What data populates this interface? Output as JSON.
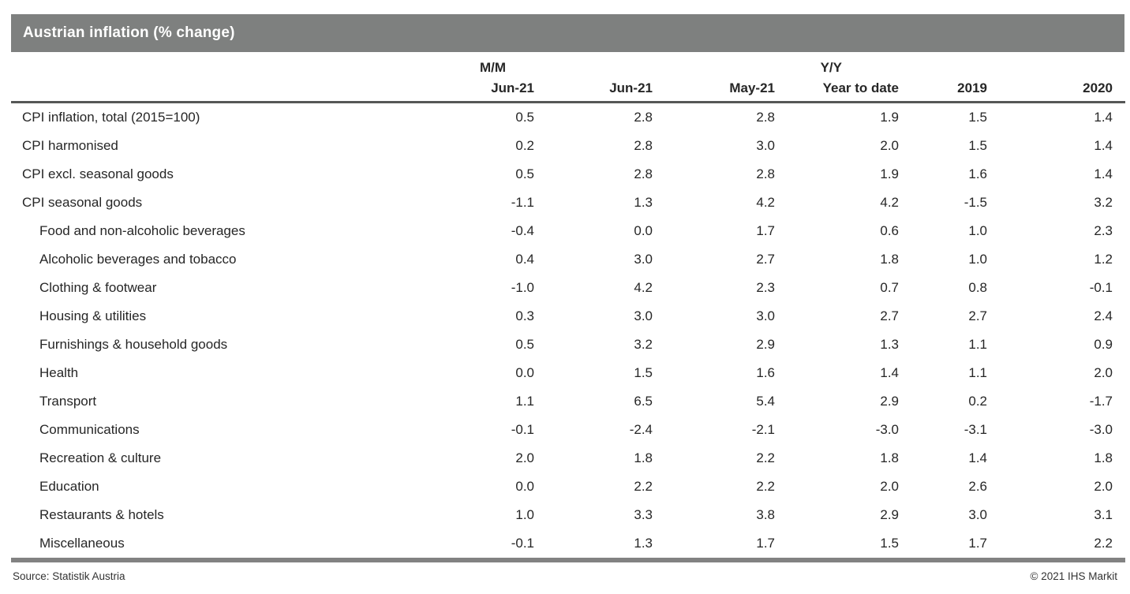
{
  "title": "Austrian inflation (% change)",
  "colors": {
    "title_bar_bg": "#7e807f",
    "title_text": "#ffffff",
    "body_text": "#262626",
    "header_rule": "#555756",
    "bottom_bar": "#828282"
  },
  "table": {
    "group_headers": {
      "mm": "M/M",
      "yy": "Y/Y"
    },
    "columns": [
      "Jun-21",
      "Jun-21",
      "May-21",
      "Year to date",
      "2019",
      "2020"
    ],
    "rows": [
      {
        "label": "CPI inflation, total (2015=100)",
        "indent": false,
        "values": [
          "0.5",
          "2.8",
          "2.8",
          "1.9",
          "1.5",
          "1.4"
        ]
      },
      {
        "label": "CPI harmonised",
        "indent": false,
        "values": [
          "0.2",
          "2.8",
          "3.0",
          "2.0",
          "1.5",
          "1.4"
        ]
      },
      {
        "label": "CPI excl. seasonal goods",
        "indent": false,
        "values": [
          "0.5",
          "2.8",
          "2.8",
          "1.9",
          "1.6",
          "1.4"
        ]
      },
      {
        "label": "CPI seasonal goods",
        "indent": false,
        "values": [
          "-1.1",
          "1.3",
          "4.2",
          "4.2",
          "-1.5",
          "3.2"
        ]
      },
      {
        "label": "Food and non-alcoholic beverages",
        "indent": true,
        "values": [
          "-0.4",
          "0.0",
          "1.7",
          "0.6",
          "1.0",
          "2.3"
        ]
      },
      {
        "label": "Alcoholic beverages and tobacco",
        "indent": true,
        "values": [
          "0.4",
          "3.0",
          "2.7",
          "1.8",
          "1.0",
          "1.2"
        ]
      },
      {
        "label": "Clothing & footwear",
        "indent": true,
        "values": [
          "-1.0",
          "4.2",
          "2.3",
          "0.7",
          "0.8",
          "-0.1"
        ]
      },
      {
        "label": "Housing & utilities",
        "indent": true,
        "values": [
          "0.3",
          "3.0",
          "3.0",
          "2.7",
          "2.7",
          "2.4"
        ]
      },
      {
        "label": "Furnishings & household goods",
        "indent": true,
        "values": [
          "0.5",
          "3.2",
          "2.9",
          "1.3",
          "1.1",
          "0.9"
        ]
      },
      {
        "label": "Health",
        "indent": true,
        "values": [
          "0.0",
          "1.5",
          "1.6",
          "1.4",
          "1.1",
          "2.0"
        ]
      },
      {
        "label": "Transport",
        "indent": true,
        "values": [
          "1.1",
          "6.5",
          "5.4",
          "2.9",
          "0.2",
          "-1.7"
        ]
      },
      {
        "label": "Communications",
        "indent": true,
        "values": [
          "-0.1",
          "-2.4",
          "-2.1",
          "-3.0",
          "-3.1",
          "-3.0"
        ]
      },
      {
        "label": "Recreation & culture",
        "indent": true,
        "values": [
          "2.0",
          "1.8",
          "2.2",
          "1.8",
          "1.4",
          "1.8"
        ]
      },
      {
        "label": "Education",
        "indent": true,
        "values": [
          "0.0",
          "2.2",
          "2.2",
          "2.0",
          "2.6",
          "2.0"
        ]
      },
      {
        "label": "Restaurants & hotels",
        "indent": true,
        "values": [
          "1.0",
          "3.3",
          "3.8",
          "2.9",
          "3.0",
          "3.1"
        ]
      },
      {
        "label": "Miscellaneous",
        "indent": true,
        "values": [
          "-0.1",
          "1.3",
          "1.7",
          "1.5",
          "1.7",
          "2.2"
        ]
      }
    ]
  },
  "footer": {
    "source": "Source: Statistik Austria",
    "copyright": "© 2021 IHS Markit"
  },
  "chart_data": {
    "type": "table",
    "title": "Austrian inflation (% change)",
    "column_groups": [
      {
        "label": "M/M",
        "columns": [
          "Jun-21"
        ]
      },
      {
        "label": "Y/Y",
        "columns": [
          "Jun-21",
          "May-21",
          "Year to date",
          "2019",
          "2020"
        ]
      }
    ],
    "columns": [
      "M/M Jun-21",
      "Y/Y Jun-21",
      "Y/Y May-21",
      "Y/Y Year to date",
      "Y/Y 2019",
      "Y/Y 2020"
    ],
    "rows": [
      {
        "label": "CPI inflation, total (2015=100)",
        "values": [
          0.5,
          2.8,
          2.8,
          1.9,
          1.5,
          1.4
        ]
      },
      {
        "label": "CPI harmonised",
        "values": [
          0.2,
          2.8,
          3.0,
          2.0,
          1.5,
          1.4
        ]
      },
      {
        "label": "CPI excl. seasonal goods",
        "values": [
          0.5,
          2.8,
          2.8,
          1.9,
          1.6,
          1.4
        ]
      },
      {
        "label": "CPI seasonal goods",
        "values": [
          -1.1,
          1.3,
          4.2,
          4.2,
          -1.5,
          3.2
        ]
      },
      {
        "label": "Food and non-alcoholic beverages",
        "values": [
          -0.4,
          0.0,
          1.7,
          0.6,
          1.0,
          2.3
        ]
      },
      {
        "label": "Alcoholic beverages and tobacco",
        "values": [
          0.4,
          3.0,
          2.7,
          1.8,
          1.0,
          1.2
        ]
      },
      {
        "label": "Clothing & footwear",
        "values": [
          -1.0,
          4.2,
          2.3,
          0.7,
          0.8,
          -0.1
        ]
      },
      {
        "label": "Housing & utilities",
        "values": [
          0.3,
          3.0,
          3.0,
          2.7,
          2.7,
          2.4
        ]
      },
      {
        "label": "Furnishings & household goods",
        "values": [
          0.5,
          3.2,
          2.9,
          1.3,
          1.1,
          0.9
        ]
      },
      {
        "label": "Health",
        "values": [
          0.0,
          1.5,
          1.6,
          1.4,
          1.1,
          2.0
        ]
      },
      {
        "label": "Transport",
        "values": [
          1.1,
          6.5,
          5.4,
          2.9,
          0.2,
          -1.7
        ]
      },
      {
        "label": "Communications",
        "values": [
          -0.1,
          -2.4,
          -2.1,
          -3.0,
          -3.1,
          -3.0
        ]
      },
      {
        "label": "Recreation & culture",
        "values": [
          2.0,
          1.8,
          2.2,
          1.8,
          1.4,
          1.8
        ]
      },
      {
        "label": "Education",
        "values": [
          0.0,
          2.2,
          2.2,
          2.0,
          2.6,
          2.0
        ]
      },
      {
        "label": "Restaurants & hotels",
        "values": [
          1.0,
          3.3,
          3.8,
          2.9,
          3.0,
          3.1
        ]
      },
      {
        "label": "Miscellaneous",
        "values": [
          -0.1,
          1.3,
          1.7,
          1.5,
          1.7,
          2.2
        ]
      }
    ],
    "source": "Statistik Austria",
    "notes": "All values are percent change"
  }
}
